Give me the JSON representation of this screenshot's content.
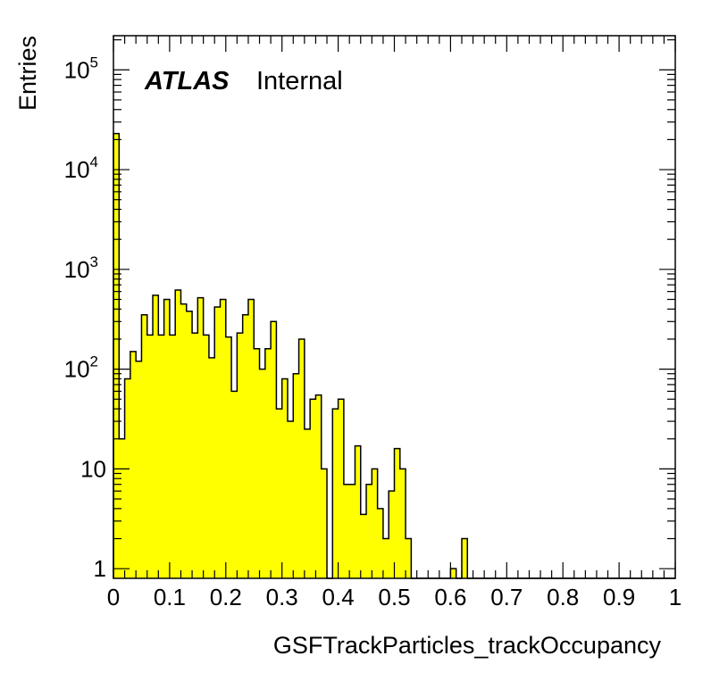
{
  "chart_data": {
    "type": "bar",
    "histogram": true,
    "xlabel": "GSFTrackParticles_trackOccupancy",
    "ylabel": "Entries",
    "annotation": {
      "bold": "ATLAS",
      "normal": "Internal"
    },
    "xlim": [
      0,
      1
    ],
    "ylim": [
      0.8,
      220000
    ],
    "yscale": "log",
    "bin_width": 0.01,
    "fill_color": "#ffff00",
    "line_color": "#000000",
    "x_ticks": [
      {
        "value": 0,
        "label": "0"
      },
      {
        "value": 0.1,
        "label": "0.1"
      },
      {
        "value": 0.2,
        "label": "0.2"
      },
      {
        "value": 0.3,
        "label": "0.3"
      },
      {
        "value": 0.4,
        "label": "0.4"
      },
      {
        "value": 0.5,
        "label": "0.5"
      },
      {
        "value": 0.6,
        "label": "0.6"
      },
      {
        "value": 0.7,
        "label": "0.7"
      },
      {
        "value": 0.8,
        "label": "0.8"
      },
      {
        "value": 0.9,
        "label": "0.9"
      },
      {
        "value": 1,
        "label": "1"
      }
    ],
    "y_ticks": [
      {
        "value": 1,
        "base": "1",
        "exp": ""
      },
      {
        "value": 10,
        "base": "10",
        "exp": ""
      },
      {
        "value": 100,
        "base": "10",
        "exp": "2"
      },
      {
        "value": 1000,
        "base": "10",
        "exp": "3"
      },
      {
        "value": 10000,
        "base": "10",
        "exp": "4"
      },
      {
        "value": 100000,
        "base": "10",
        "exp": "5"
      }
    ],
    "values": [
      23000,
      20,
      80,
      150,
      120,
      350,
      220,
      550,
      220,
      500,
      220,
      620,
      450,
      380,
      230,
      520,
      220,
      130,
      420,
      500,
      210,
      60,
      230,
      350,
      500,
      160,
      100,
      160,
      300,
      40,
      80,
      30,
      90,
      200,
      25,
      50,
      55,
      10,
      0,
      40,
      50,
      7,
      7,
      17,
      3.5,
      7,
      10,
      4,
      2,
      6,
      16,
      10,
      2,
      0,
      0,
      0,
      0,
      0,
      0,
      0,
      1,
      0,
      2,
      0,
      0,
      0,
      0,
      0,
      0,
      0,
      0,
      0,
      0,
      0,
      0,
      0,
      0,
      0,
      0,
      0,
      0,
      0,
      0,
      0,
      0,
      0,
      0,
      0,
      0,
      0,
      0,
      0,
      0,
      0,
      0,
      0,
      0,
      0,
      0,
      0
    ]
  }
}
